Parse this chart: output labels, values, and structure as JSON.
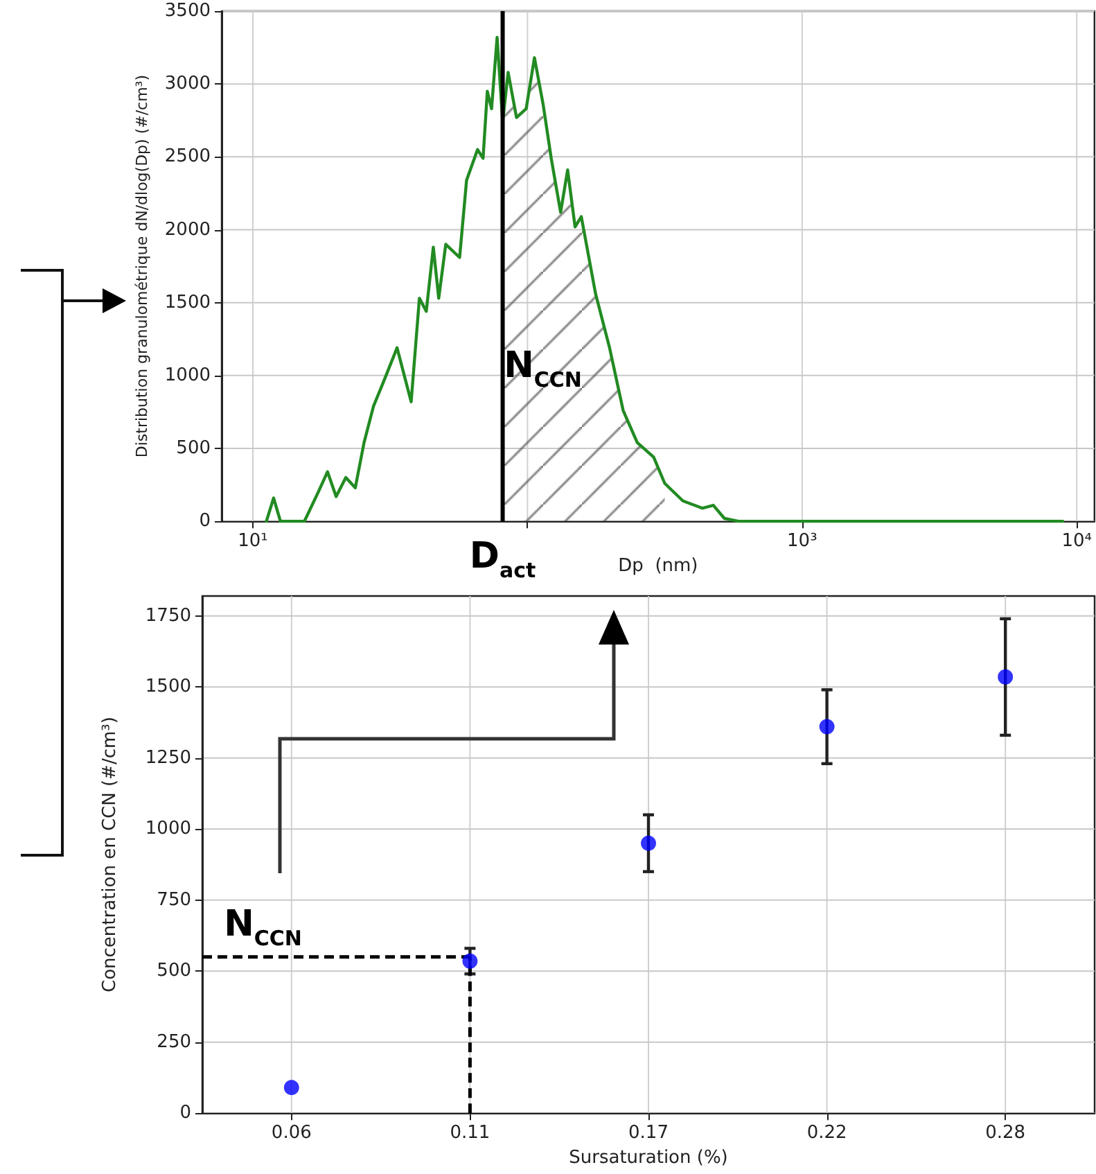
{
  "chart_data": [
    {
      "type": "line",
      "xlabel": "Dp  (nm)",
      "ylabel": "Distribution granulométrique dN/dlog(Dp) (#/cm³)",
      "log": "x",
      "xlim": [
        7.7,
        11600
      ],
      "xticks": [
        {
          "value": 10,
          "label": "10¹"
        },
        {
          "value": 100,
          "label": null
        },
        {
          "value": 1000,
          "label": "10³"
        },
        {
          "value": 10000,
          "label": "10⁴"
        }
      ],
      "ylim": [
        0,
        3500
      ],
      "yticks": [
        0,
        500,
        1000,
        1500,
        2000,
        2500,
        3000,
        3500
      ],
      "grid": true,
      "marker": "none",
      "series": [
        {
          "type": "line",
          "color": "#228b22",
          "x": [
            11.2,
            11.9,
            12.6,
            15.4,
            17.3,
            18.7,
            20.1,
            21.8,
            23.6,
            25.4,
            27.5,
            29.8,
            33.5,
            37.7,
            40.4,
            42.8,
            45.4,
            47.5,
            50.4,
            56.6,
            60.0,
            65.8,
            68.9,
            71.4,
            74.0,
            77.5,
            81.2,
            85.0,
            91.2,
            98.9,
            106,
            114,
            122,
            132,
            140,
            149,
            157,
            177,
            199,
            223,
            251,
            288,
            316,
            368,
            433,
            475,
            521,
            586,
            8890
          ],
          "values": [
            0,
            160,
            0,
            0,
            200,
            340,
            170,
            300,
            230,
            540,
            790,
            950,
            1190,
            820,
            1530,
            1440,
            1880,
            1530,
            1900,
            1810,
            2340,
            2550,
            2490,
            2950,
            2830,
            3320,
            2740,
            3080,
            2770,
            2830,
            3180,
            2860,
            2490,
            2120,
            2410,
            2020,
            2090,
            1560,
            1190,
            760,
            540,
            440,
            260,
            140,
            90,
            110,
            20,
            0,
            0
          ]
        },
        {
          "type": "area",
          "color": "#555555",
          "x": [
            81.2,
            85.0,
            91.2,
            98.9,
            106,
            114,
            122,
            132,
            140,
            149,
            157,
            177,
            199,
            223,
            251,
            288,
            316
          ],
          "values": [
            2740,
            3080,
            2770,
            2830,
            3180,
            2860,
            2490,
            2120,
            2410,
            2020,
            2090,
            1560,
            1190,
            760,
            540,
            440,
            260
          ]
        }
      ],
      "ref_lines": [
        {
          "axis": "x",
          "value": 81.2,
          "label": "D$_{act}$",
          "color": "#000000"
        }
      ],
      "annotations": [
        "N$_{CCN}$"
      ]
    },
    {
      "type": "scatter",
      "xlabel": "Sursaturation (%)",
      "ylabel": "Concentration en CCN (#/cm³)",
      "categories": [
        "0.06",
        "0.11",
        "0.17",
        "0.22",
        "0.28"
      ],
      "values": [
        90,
        535,
        950,
        1360,
        1535
      ],
      "errors": [
        null,
        45,
        100,
        130,
        205
      ],
      "color": "#0000ff",
      "ylim": [
        0,
        1820
      ],
      "yticks": [
        0,
        250,
        500,
        750,
        1000,
        1250,
        1500,
        1750
      ],
      "grid": true,
      "marker": "circle",
      "ref_lines": [
        {
          "axis": "y",
          "value": 550,
          "color": "#000000",
          "line_style": "dashed"
        },
        {
          "axis": "x",
          "value": "0.11",
          "color": "#000000",
          "line_style": "dashed"
        }
      ],
      "annotations": [
        "N$_{CCN}$"
      ]
    }
  ]
}
